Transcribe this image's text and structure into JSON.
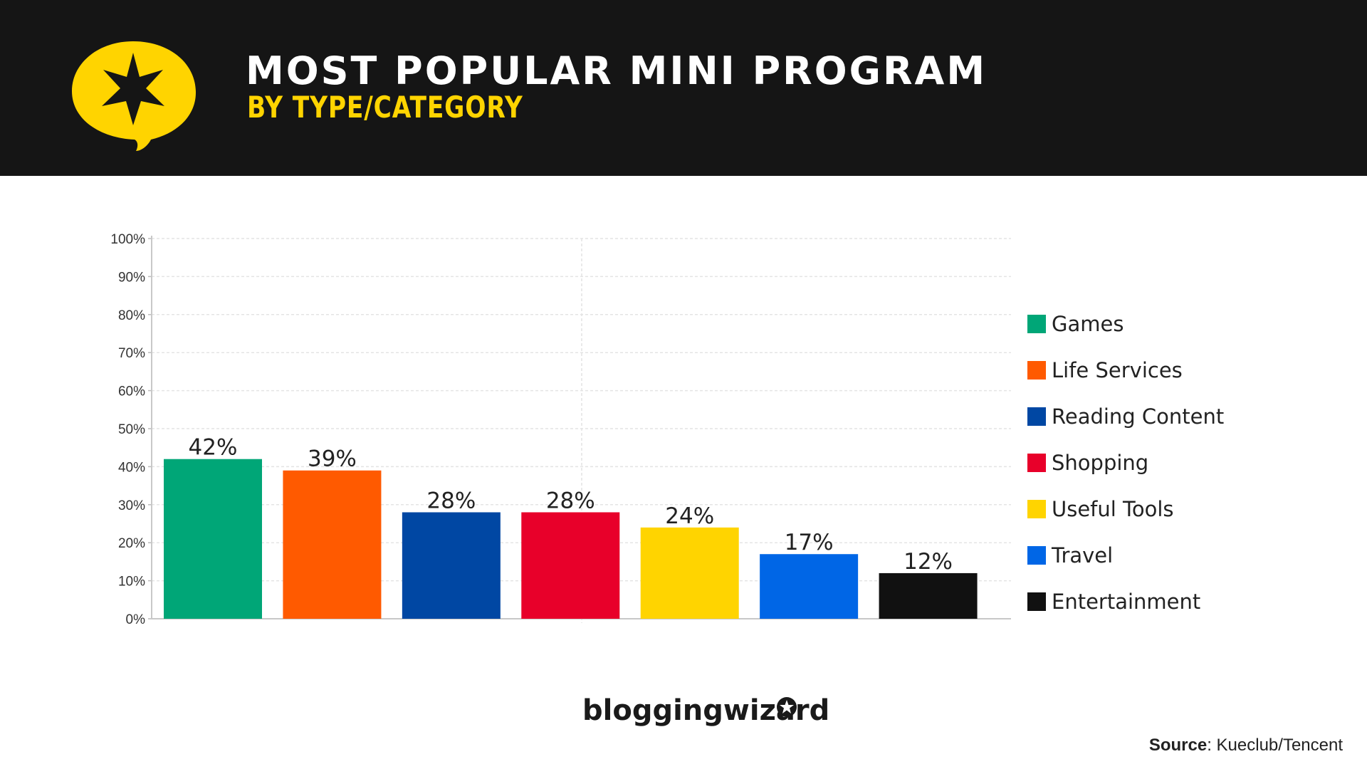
{
  "header": {
    "title": "MOST POPULAR MINI PROGRAM",
    "subtitle": "BY TYPE/CATEGORY",
    "accent_color": "#FFD400",
    "logo_icon": "speech-bubble-star-icon"
  },
  "chart_data": {
    "type": "bar",
    "title": "",
    "xlabel": "",
    "ylabel": "",
    "categories": [
      "Games",
      "Life Services",
      "Reading Content",
      "Shopping",
      "Useful Tools",
      "Travel",
      "Entertainment"
    ],
    "values": [
      42,
      39,
      28,
      28,
      24,
      17,
      12
    ],
    "data_labels": [
      "42%",
      "39%",
      "28%",
      "28%",
      "24%",
      "17%",
      "12%"
    ],
    "colors": [
      "#00A677",
      "#FF5A00",
      "#0047A3",
      "#E8002A",
      "#FFD400",
      "#0066E6",
      "#111111"
    ],
    "ylim": [
      0,
      100
    ],
    "yticks": [
      0,
      10,
      20,
      30,
      40,
      50,
      60,
      70,
      80,
      90,
      100
    ],
    "ytick_labels": [
      "0%",
      "10%",
      "20%",
      "30%",
      "40%",
      "50%",
      "60%",
      "70%",
      "80%",
      "90%",
      "100%"
    ],
    "grid": true,
    "legend_position": "right"
  },
  "footer": {
    "brand": "bloggingwizard",
    "source_label": "Source",
    "source_value": ": Kueclub/Tencent"
  }
}
